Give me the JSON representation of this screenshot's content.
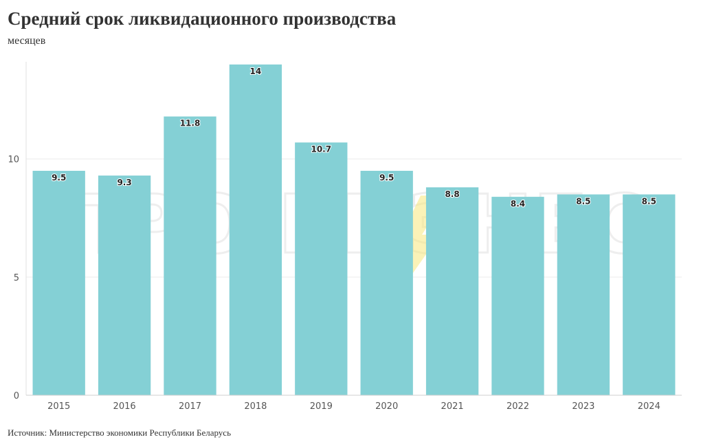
{
  "chart_data": {
    "type": "bar",
    "title": "Средний срок ликвидационного производства",
    "subtitle": "месяцев",
    "source": "Источник: Министерство экономики Республики Беларусь",
    "categories": [
      "2015",
      "2016",
      "2017",
      "2018",
      "2019",
      "2020",
      "2021",
      "2022",
      "2023",
      "2024"
    ],
    "values": [
      9.5,
      9.3,
      11.8,
      14,
      10.7,
      9.5,
      8.8,
      8.4,
      8.5,
      8.5
    ],
    "ylim": [
      0,
      14
    ],
    "yticks": [
      0,
      5,
      10
    ],
    "grid": true,
    "bar_color": "#84d0d5",
    "watermark": "ПРО БИЗНЕС",
    "watermark_accent": "#f7e87c"
  }
}
